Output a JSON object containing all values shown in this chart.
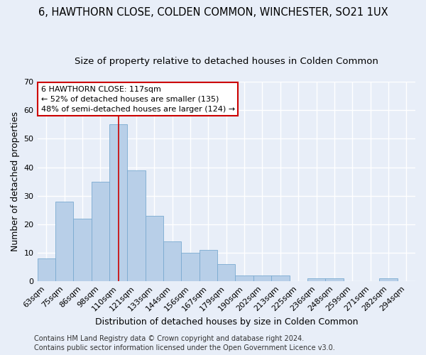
{
  "title": "6, HAWTHORN CLOSE, COLDEN COMMON, WINCHESTER, SO21 1UX",
  "subtitle": "Size of property relative to detached houses in Colden Common",
  "xlabel": "Distribution of detached houses by size in Colden Common",
  "ylabel": "Number of detached properties",
  "categories": [
    "63sqm",
    "75sqm",
    "86sqm",
    "98sqm",
    "110sqm",
    "121sqm",
    "133sqm",
    "144sqm",
    "156sqm",
    "167sqm",
    "179sqm",
    "190sqm",
    "202sqm",
    "213sqm",
    "225sqm",
    "236sqm",
    "248sqm",
    "259sqm",
    "271sqm",
    "282sqm",
    "294sqm"
  ],
  "values": [
    8,
    28,
    22,
    35,
    55,
    39,
    23,
    14,
    10,
    11,
    6,
    2,
    2,
    2,
    0,
    1,
    1,
    0,
    0,
    1,
    0
  ],
  "bar_color": "#b8cfe8",
  "bar_edge_color": "#7aaad0",
  "vline_index": 4.5,
  "ylim": [
    0,
    70
  ],
  "yticks": [
    0,
    10,
    20,
    30,
    40,
    50,
    60,
    70
  ],
  "annotation_title": "6 HAWTHORN CLOSE: 117sqm",
  "annotation_line1": "← 52% of detached houses are smaller (135)",
  "annotation_line2": "48% of semi-detached houses are larger (124) →",
  "annotation_box_color": "#ffffff",
  "annotation_box_edge": "#cc0000",
  "vline_color": "#cc0000",
  "footer1": "Contains HM Land Registry data © Crown copyright and database right 2024.",
  "footer2": "Contains public sector information licensed under the Open Government Licence v3.0.",
  "background_color": "#e8eef8",
  "grid_color": "#ffffff",
  "title_fontsize": 10.5,
  "subtitle_fontsize": 9.5,
  "axis_label_fontsize": 9,
  "tick_fontsize": 8,
  "annotation_fontsize": 8,
  "footer_fontsize": 7
}
